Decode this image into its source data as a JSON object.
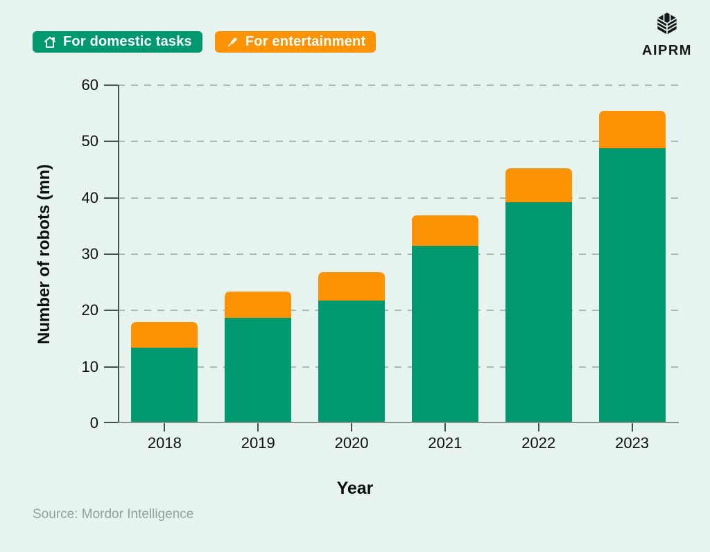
{
  "legend": {
    "items": [
      {
        "label": "For domestic tasks",
        "icon": "house-icon",
        "color": "#00996F"
      },
      {
        "label": "For entertainment",
        "icon": "pushpin-icon",
        "color": "#FB9304"
      }
    ]
  },
  "brand": {
    "name": "AIPRM"
  },
  "chart_data": {
    "type": "bar",
    "stacked": true,
    "categories": [
      "2018",
      "2019",
      "2020",
      "2021",
      "2022",
      "2023"
    ],
    "series": [
      {
        "name": "For domestic tasks",
        "color": "#00996F",
        "values": [
          13.2,
          18.5,
          21.5,
          31.2,
          39.0,
          48.6
        ]
      },
      {
        "name": "For entertainment",
        "color": "#FB9304",
        "values": [
          4.5,
          4.6,
          5.0,
          5.5,
          6.0,
          6.6
        ]
      }
    ],
    "totals": [
      17.7,
      23.1,
      26.5,
      36.7,
      45.0,
      55.2
    ],
    "xlabel": "Year",
    "ylabel": "Number of robots (mn)",
    "ylim": [
      0,
      60
    ],
    "yticks": [
      0,
      10,
      20,
      30,
      40,
      50,
      60
    ],
    "grid": "horizontal-dashed",
    "legend_position": "top-left"
  },
  "footer": {
    "source": "Source: Mordor Intelligence"
  },
  "colors": {
    "background": "#E7F3EE",
    "domestic_green": "#00996F",
    "entertainment_orange": "#FB9304",
    "axis": "#46514C",
    "gridline": "#AFB9B4",
    "source_text": "#96A09B"
  }
}
